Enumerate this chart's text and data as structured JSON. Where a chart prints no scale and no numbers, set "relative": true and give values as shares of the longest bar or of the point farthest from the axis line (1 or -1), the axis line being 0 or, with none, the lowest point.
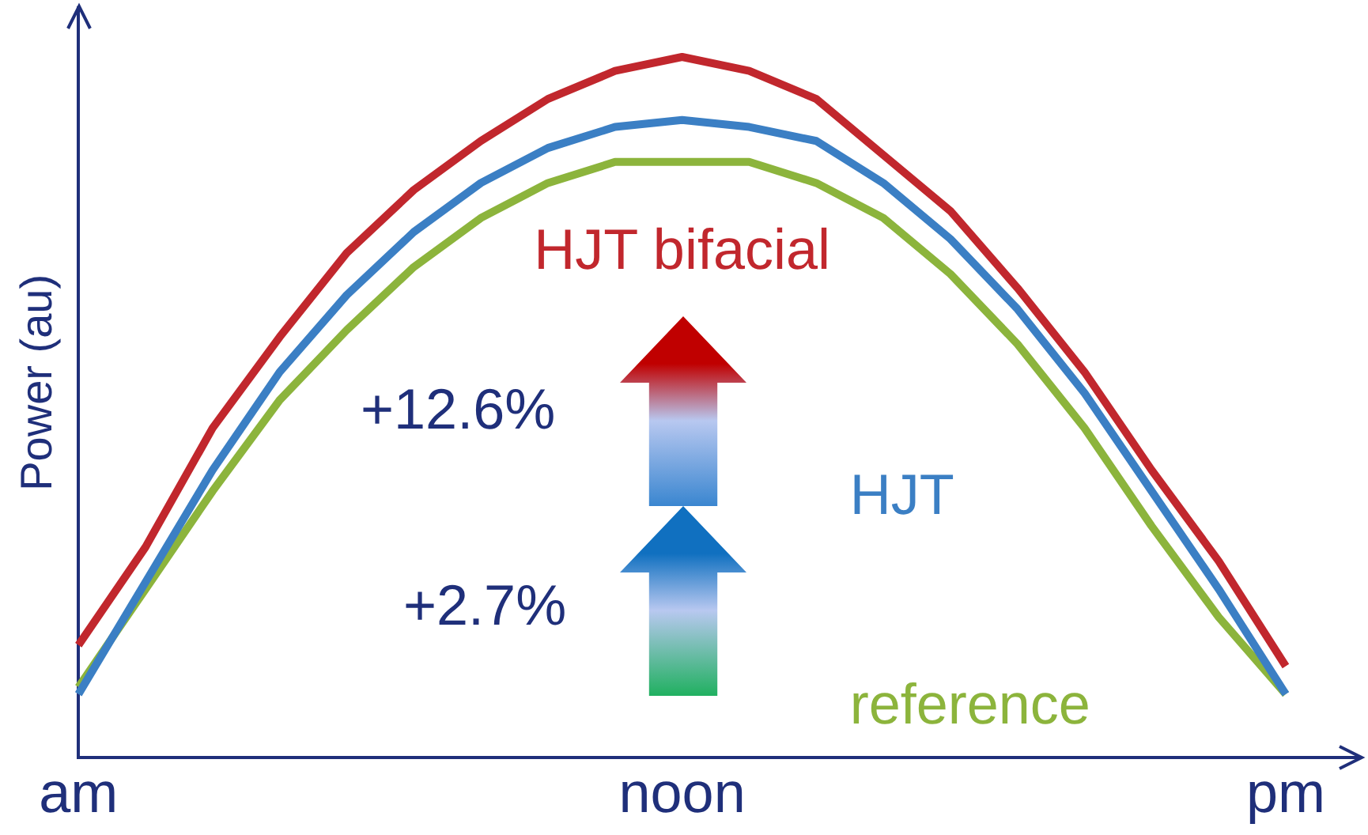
{
  "chart_data": {
    "type": "line",
    "relative": true,
    "ylabel": "Power (au)",
    "categories": [
      "am",
      null,
      null,
      null,
      null,
      null,
      null,
      null,
      null,
      "noon",
      null,
      null,
      null,
      null,
      null,
      null,
      null,
      null,
      "pm"
    ],
    "series": [
      {
        "name": "HJT bifacial",
        "color": "#c1272d",
        "values": [
          0.16,
          0.3,
          0.47,
          0.6,
          0.72,
          0.81,
          0.88,
          0.94,
          0.98,
          1.0,
          0.98,
          0.94,
          0.86,
          0.78,
          0.67,
          0.55,
          0.41,
          0.28,
          0.13
        ]
      },
      {
        "name": "HJT",
        "color": "#3b7fc4",
        "values": [
          0.09,
          0.25,
          0.41,
          0.55,
          0.66,
          0.75,
          0.82,
          0.87,
          0.9,
          0.91,
          0.9,
          0.88,
          0.82,
          0.74,
          0.64,
          0.52,
          0.38,
          0.24,
          0.09
        ]
      },
      {
        "name": "reference",
        "color": "#8cb43c",
        "values": [
          0.1,
          0.24,
          0.38,
          0.51,
          0.61,
          0.7,
          0.77,
          0.82,
          0.85,
          0.85,
          0.85,
          0.82,
          0.77,
          0.69,
          0.59,
          0.47,
          0.33,
          0.2,
          0.09
        ]
      }
    ],
    "annotations": [
      "+12.6%",
      "+2.7%"
    ],
    "legend": false,
    "grid": false,
    "marker": "none",
    "line_style": "solid"
  }
}
